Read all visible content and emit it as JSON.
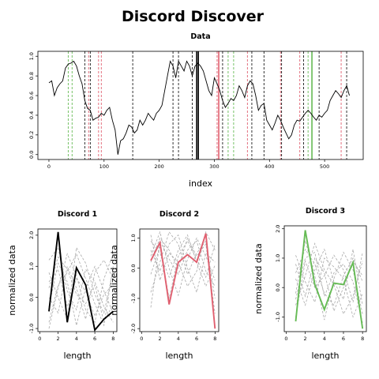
{
  "title": "Discord Discover",
  "colors": {
    "series": "#000000",
    "grid_green": "#66bb55",
    "grid_pink": "#e06070",
    "grid_black": "#000000",
    "background_line": "#aaaaaa"
  },
  "chart_data": [
    {
      "type": "line",
      "title": "Data",
      "xlabel": "index",
      "ylabel": "",
      "xlim": [
        -20,
        570
      ],
      "ylim": [
        -0.05,
        1.05
      ],
      "xticks": [
        0,
        100,
        200,
        300,
        400,
        500
      ],
      "yticks": [
        0.0,
        0.2,
        0.4,
        0.6,
        0.8,
        1.0
      ],
      "series": [
        {
          "x": [
            0,
            5,
            10,
            15,
            20,
            25,
            30,
            35,
            40,
            45,
            50,
            55,
            60,
            65,
            70,
            75,
            80,
            85,
            90,
            95,
            100,
            105,
            110,
            115,
            120,
            125,
            130,
            135,
            140,
            145,
            150,
            155,
            160,
            165,
            170,
            175,
            180,
            185,
            190,
            195,
            200,
            205,
            210,
            215,
            220,
            225,
            230,
            235,
            240,
            245,
            250,
            255,
            260,
            265,
            270,
            275,
            280,
            285,
            290,
            295,
            300,
            305,
            310,
            315,
            320,
            325,
            330,
            335,
            340,
            345,
            350,
            355,
            360,
            365,
            370,
            375,
            380,
            385,
            390,
            395,
            400,
            405,
            410,
            415,
            420,
            425,
            430,
            435,
            440,
            445,
            450,
            455,
            460,
            465,
            470,
            475,
            480,
            485,
            490,
            495,
            500,
            505,
            510,
            515,
            520,
            525,
            530,
            535,
            540,
            545
          ],
          "y": [
            0.73,
            0.75,
            0.6,
            0.68,
            0.72,
            0.75,
            0.88,
            0.92,
            0.93,
            0.95,
            0.9,
            0.8,
            0.72,
            0.55,
            0.47,
            0.45,
            0.35,
            0.37,
            0.38,
            0.42,
            0.4,
            0.45,
            0.48,
            0.35,
            0.25,
            0.0,
            0.14,
            0.16,
            0.22,
            0.3,
            0.28,
            0.22,
            0.25,
            0.35,
            0.3,
            0.35,
            0.42,
            0.38,
            0.35,
            0.42,
            0.45,
            0.5,
            0.65,
            0.8,
            0.95,
            0.9,
            0.78,
            0.95,
            0.9,
            0.85,
            0.95,
            0.9,
            0.8,
            0.9,
            0.93,
            0.9,
            0.85,
            0.75,
            0.65,
            0.6,
            0.78,
            0.72,
            0.65,
            0.55,
            0.48,
            0.52,
            0.57,
            0.55,
            0.6,
            0.7,
            0.65,
            0.58,
            0.7,
            0.75,
            0.72,
            0.6,
            0.45,
            0.5,
            0.52,
            0.35,
            0.3,
            0.25,
            0.32,
            0.4,
            0.35,
            0.28,
            0.22,
            0.16,
            0.2,
            0.3,
            0.35,
            0.34,
            0.38,
            0.42,
            0.45,
            0.42,
            0.38,
            0.35,
            0.4,
            0.38,
            0.42,
            0.45,
            0.55,
            0.6,
            0.65,
            0.62,
            0.58,
            0.65,
            0.7,
            0.6
          ]
        }
      ],
      "vlines_green_dashed": [
        35,
        42,
        325,
        335,
        470
      ],
      "vlines_pink_dashed": [
        72,
        90,
        95,
        305,
        360,
        420,
        455,
        530
      ],
      "vlines_black_dashed": [
        65,
        75,
        152,
        225,
        235,
        260,
        315,
        368,
        390,
        422,
        462,
        490,
        540
      ],
      "vlines_solid": [
        {
          "x": 268,
          "color": "#000000"
        },
        {
          "x": 271,
          "color": "#000000"
        },
        {
          "x": 308,
          "color": "#e06070"
        },
        {
          "x": 477,
          "color": "#66bb55"
        }
      ]
    },
    {
      "type": "line",
      "title": "Discord 1",
      "xlabel": "length",
      "ylabel": "normalized data",
      "xlim": [
        -0.2,
        8.4
      ],
      "ylim": [
        -1.1,
        2.2
      ],
      "xticks": [
        0,
        2,
        4,
        6,
        8
      ],
      "yticks": [
        -1.0,
        0.0,
        1.0,
        2.0
      ],
      "main": {
        "x": [
          1,
          2,
          3,
          4,
          5,
          6,
          7,
          8
        ],
        "y": [
          -0.45,
          2.1,
          -0.8,
          0.95,
          0.4,
          -1.05,
          -0.7,
          -0.45
        ],
        "color": "#000000"
      },
      "background": [
        {
          "x": [
            1,
            2,
            3,
            4,
            5,
            6,
            7,
            8
          ],
          "y": [
            0.5,
            0.9,
            -0.3,
            0.6,
            0.2,
            -0.6,
            0.1,
            0.4
          ]
        },
        {
          "x": [
            1,
            2,
            3,
            4,
            5,
            6,
            7,
            8
          ],
          "y": [
            -0.8,
            0.4,
            0.8,
            1.4,
            0.6,
            -0.2,
            -0.9,
            1.0
          ]
        },
        {
          "x": [
            1,
            2,
            3,
            4,
            5,
            6,
            7,
            8
          ],
          "y": [
            1.2,
            1.6,
            0.2,
            -0.4,
            0.9,
            0.5,
            -0.3,
            -0.8
          ]
        },
        {
          "x": [
            1,
            2,
            3,
            4,
            5,
            6,
            7,
            8
          ],
          "y": [
            0.0,
            -0.5,
            1.0,
            0.3,
            -0.7,
            0.8,
            1.2,
            0.6
          ]
        },
        {
          "x": [
            1,
            2,
            3,
            4,
            5,
            6,
            7,
            8
          ],
          "y": [
            -0.3,
            1.1,
            0.5,
            -0.9,
            0.3,
            1.0,
            0.2,
            -0.5
          ]
        },
        {
          "x": [
            1,
            2,
            3,
            4,
            5,
            6,
            7,
            8
          ],
          "y": [
            0.8,
            0.0,
            -0.7,
            1.6,
            1.1,
            0.1,
            -0.5,
            0.9
          ]
        },
        {
          "x": [
            1,
            2,
            3,
            4,
            5,
            6,
            7,
            8
          ],
          "y": [
            -1.0,
            0.3,
            1.4,
            0.7,
            -0.4,
            -0.8,
            0.6,
            1.4
          ]
        },
        {
          "x": [
            1,
            2,
            3,
            4,
            5,
            6,
            7,
            8
          ],
          "y": [
            0.3,
            1.3,
            0.9,
            0.1,
            -0.2,
            0.4,
            -0.8,
            -0.2
          ]
        }
      ]
    },
    {
      "type": "line",
      "title": "Discord 2",
      "xlabel": "length",
      "ylabel": "normalized data",
      "xlim": [
        -0.2,
        8.4
      ],
      "ylim": [
        -2.1,
        1.3
      ],
      "xticks": [
        0,
        2,
        4,
        6,
        8
      ],
      "yticks": [
        -2.0,
        -1.0,
        0.0,
        1.0
      ],
      "main": {
        "x": [
          1,
          2,
          3,
          4,
          5,
          6,
          7,
          8
        ],
        "y": [
          0.25,
          0.85,
          -1.2,
          0.2,
          0.45,
          0.2,
          1.15,
          -2.0
        ],
        "color": "#e06070"
      },
      "background": [
        {
          "x": [
            1,
            2,
            3,
            4,
            5,
            6,
            7,
            8
          ],
          "y": [
            0.9,
            0.5,
            -0.3,
            0.6,
            1.1,
            0.2,
            -0.6,
            0.1
          ]
        },
        {
          "x": [
            1,
            2,
            3,
            4,
            5,
            6,
            7,
            8
          ],
          "y": [
            -0.8,
            0.2,
            1.2,
            0.8,
            -0.2,
            0.5,
            0.9,
            -1.0
          ]
        },
        {
          "x": [
            1,
            2,
            3,
            4,
            5,
            6,
            7,
            8
          ],
          "y": [
            0.4,
            1.2,
            0.0,
            -0.9,
            0.3,
            1.0,
            0.4,
            -0.4
          ]
        },
        {
          "x": [
            1,
            2,
            3,
            4,
            5,
            6,
            7,
            8
          ],
          "y": [
            1.1,
            -0.4,
            0.5,
            0.2,
            -0.6,
            -0.1,
            1.2,
            0.6
          ]
        },
        {
          "x": [
            1,
            2,
            3,
            4,
            5,
            6,
            7,
            8
          ],
          "y": [
            -0.2,
            0.7,
            -1.0,
            0.4,
            0.9,
            0.3,
            -0.3,
            0.8
          ]
        },
        {
          "x": [
            1,
            2,
            3,
            4,
            5,
            6,
            7,
            8
          ],
          "y": [
            0.6,
            -0.1,
            0.8,
            1.1,
            0.0,
            -0.8,
            0.5,
            0.2
          ]
        },
        {
          "x": [
            1,
            2,
            3,
            4,
            5,
            6,
            7,
            8
          ],
          "y": [
            -1.3,
            0.9,
            0.3,
            -0.2,
            0.6,
            0.9,
            -0.1,
            -0.6
          ]
        },
        {
          "x": [
            1,
            2,
            3,
            4,
            5,
            6,
            7,
            8
          ],
          "y": [
            0.2,
            1.0,
            0.6,
            0.0,
            1.0,
            0.4,
            0.8,
            -1.5
          ]
        }
      ]
    },
    {
      "type": "line",
      "title": "Discord 3",
      "xlabel": "length",
      "ylabel": "normalized data",
      "xlim": [
        -0.2,
        8.4
      ],
      "ylim": [
        -1.5,
        2.1
      ],
      "xticks": [
        0,
        2,
        4,
        6,
        8
      ],
      "yticks": [
        -1.0,
        0.0,
        1.0,
        2.0
      ],
      "main": {
        "x": [
          1,
          2,
          3,
          4,
          5,
          6,
          7,
          8
        ],
        "y": [
          -1.15,
          1.95,
          0.1,
          -0.75,
          0.15,
          0.1,
          0.85,
          -1.4
        ],
        "color": "#66bb55"
      },
      "background": [
        {
          "x": [
            1,
            2,
            3,
            4,
            5,
            6,
            7,
            8
          ],
          "y": [
            0.5,
            1.3,
            0.8,
            -0.2,
            -0.6,
            0.4,
            1.0,
            0.2
          ]
        },
        {
          "x": [
            1,
            2,
            3,
            4,
            5,
            6,
            7,
            8
          ],
          "y": [
            -0.6,
            0.4,
            1.5,
            0.6,
            0.1,
            -0.9,
            -0.3,
            0.9
          ]
        },
        {
          "x": [
            1,
            2,
            3,
            4,
            5,
            6,
            7,
            8
          ],
          "y": [
            1.1,
            0.2,
            -0.5,
            1.0,
            0.7,
            0.3,
            -1.0,
            -0.2
          ]
        },
        {
          "x": [
            1,
            2,
            3,
            4,
            5,
            6,
            7,
            8
          ],
          "y": [
            -0.2,
            1.6,
            0.4,
            -1.1,
            0.3,
            1.2,
            0.6,
            -0.9
          ]
        },
        {
          "x": [
            1,
            2,
            3,
            4,
            5,
            6,
            7,
            8
          ],
          "y": [
            0.8,
            -0.3,
            1.0,
            0.5,
            -0.8,
            0.0,
            0.9,
            0.4
          ]
        },
        {
          "x": [
            1,
            2,
            3,
            4,
            5,
            6,
            7,
            8
          ],
          "y": [
            -1.0,
            0.9,
            0.0,
            0.4,
            1.1,
            0.6,
            -0.5,
            1.2
          ]
        },
        {
          "x": [
            1,
            2,
            3,
            4,
            5,
            6,
            7,
            8
          ],
          "y": [
            0.3,
            -0.6,
            0.6,
            1.3,
            0.2,
            -0.4,
            1.3,
            -0.6
          ]
        },
        {
          "x": [
            1,
            2,
            3,
            4,
            5,
            6,
            7,
            8
          ],
          "y": [
            -0.4,
            1.0,
            1.2,
            -0.3,
            0.5,
            0.8,
            0.2,
            -1.2
          ]
        }
      ]
    }
  ]
}
